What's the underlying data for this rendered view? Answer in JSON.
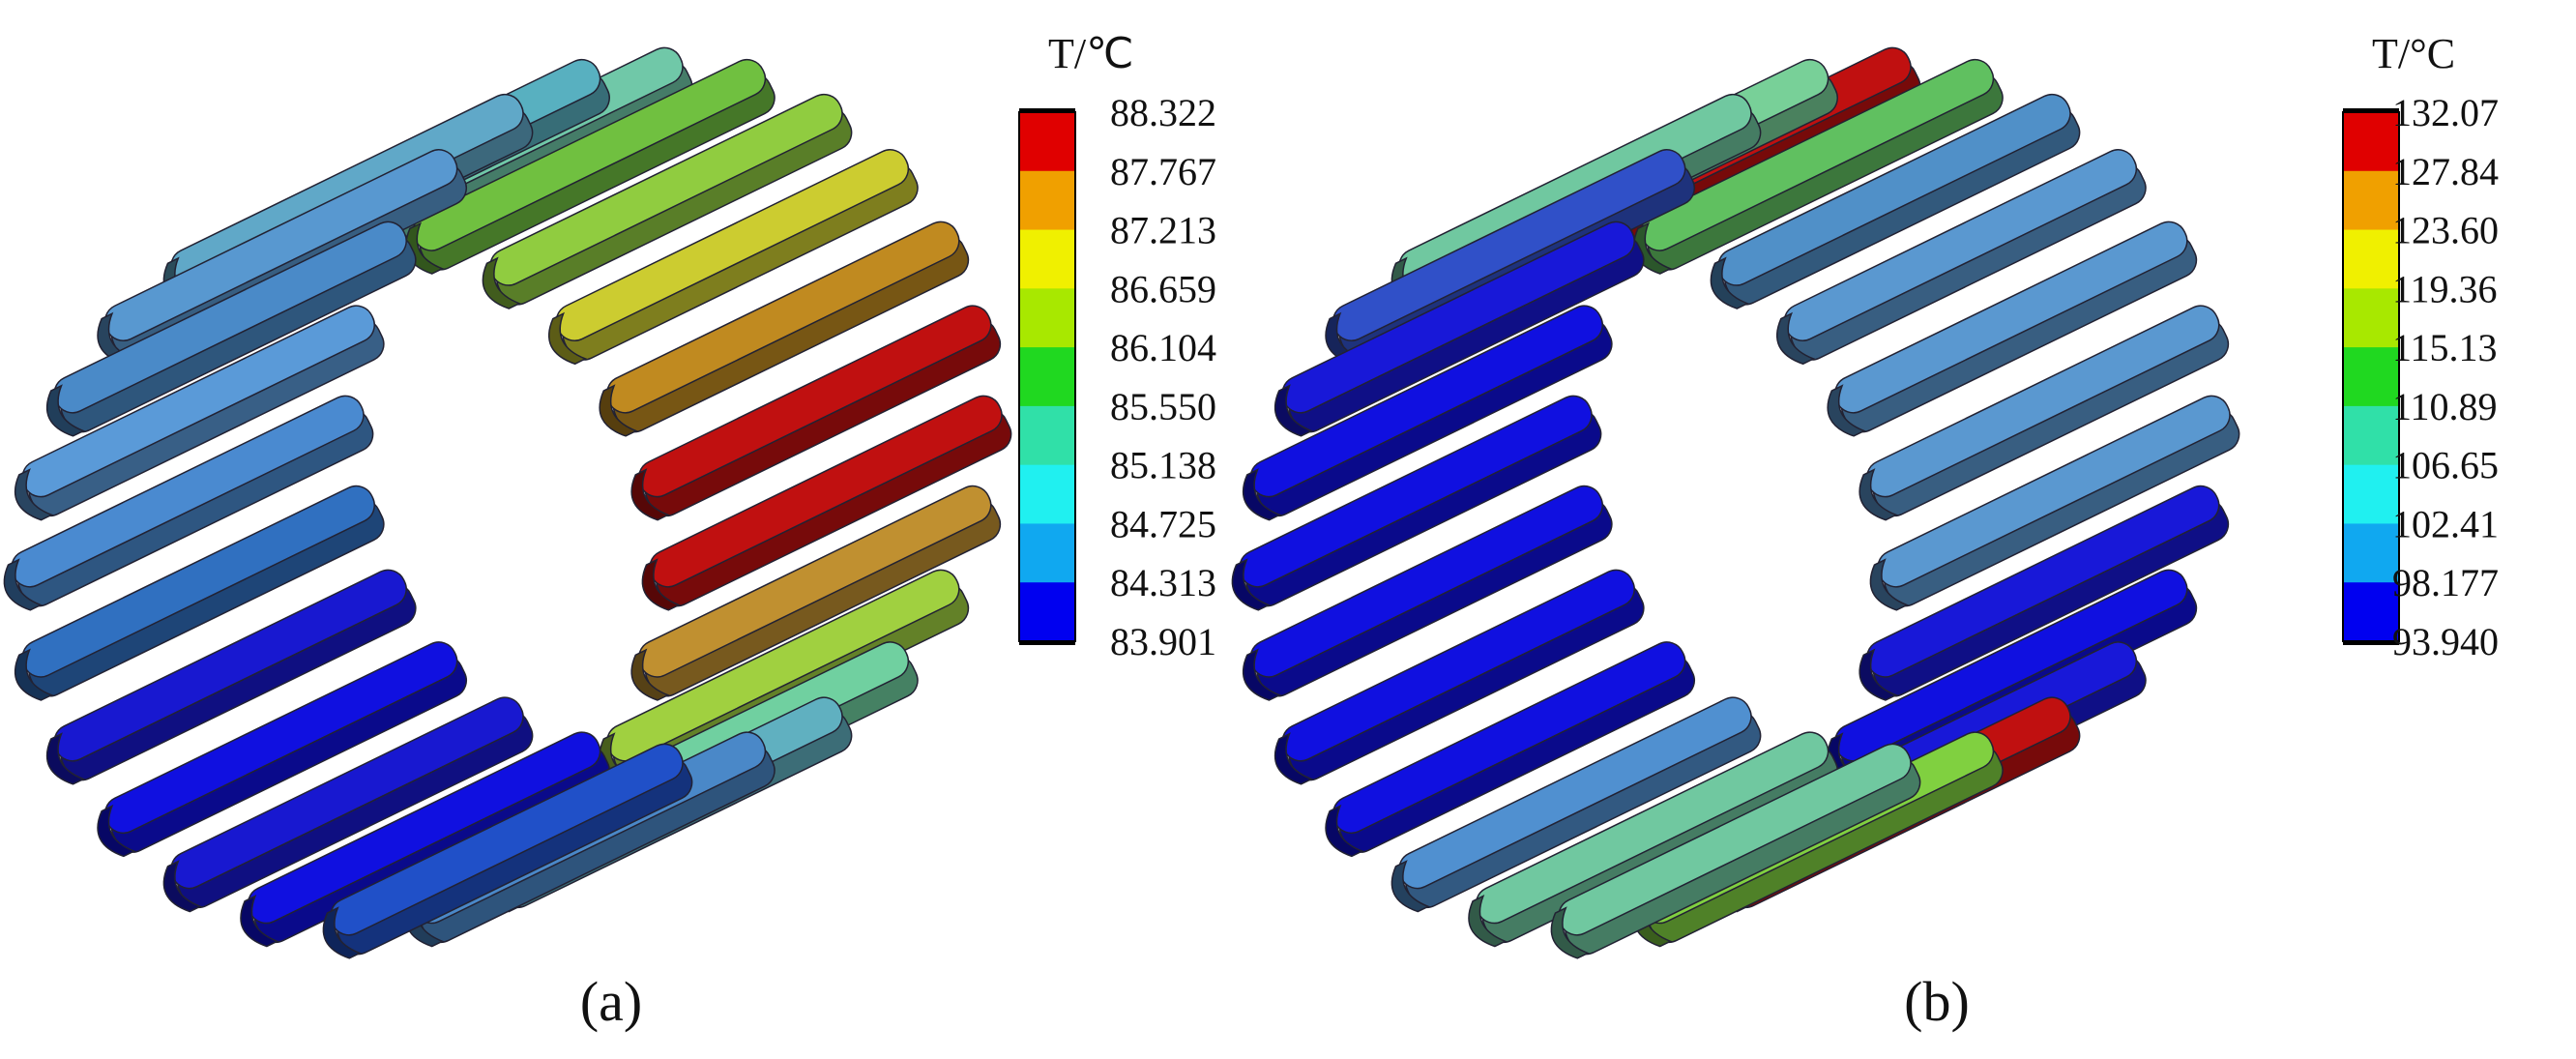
{
  "panels": [
    {
      "label": "(a)",
      "legend": {
        "title": "T/℃",
        "ticks": [
          "88.322",
          "87.767",
          "87.213",
          "86.659",
          "86.104",
          "85.550",
          "85.138",
          "84.725",
          "84.313",
          "83.901"
        ]
      }
    },
    {
      "label": "(b)",
      "legend": {
        "title": "T/°C",
        "ticks": [
          "132.07",
          "127.84",
          "123.60",
          "119.36",
          "115.13",
          "110.89",
          "106.65",
          "102.41",
          "98.177",
          "93.940"
        ]
      }
    }
  ]
}
